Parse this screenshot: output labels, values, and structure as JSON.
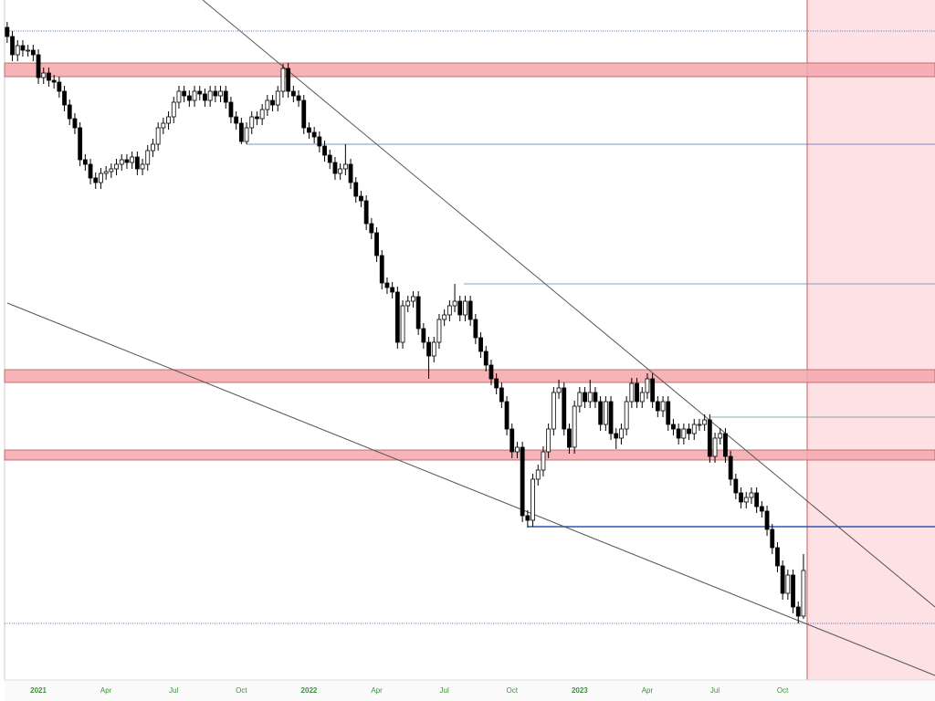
{
  "chart_data": {
    "type": "candlestick",
    "categories": [
      null,
      null,
      null,
      null,
      null,
      null,
      "2021",
      null,
      null,
      null,
      null,
      null,
      null,
      null,
      null,
      null,
      null,
      null,
      null,
      "Apr",
      null,
      null,
      null,
      null,
      null,
      null,
      null,
      null,
      null,
      null,
      null,
      null,
      "Jul",
      null,
      null,
      null,
      null,
      null,
      null,
      null,
      null,
      null,
      null,
      null,
      null,
      "Oct",
      null,
      null,
      null,
      null,
      null,
      null,
      null,
      null,
      null,
      null,
      null,
      null,
      "2022",
      null,
      null,
      null,
      null,
      null,
      null,
      null,
      null,
      null,
      null,
      null,
      null,
      "Apr",
      null,
      null,
      null,
      null,
      null,
      null,
      null,
      null,
      null,
      null,
      null,
      null,
      "Jul",
      null,
      null,
      null,
      null,
      null,
      null,
      null,
      null,
      null,
      null,
      null,
      null,
      "Oct",
      null,
      null,
      null,
      null,
      null,
      null,
      null,
      null,
      null,
      null,
      null,
      null,
      "2023",
      null,
      null,
      null,
      null,
      null,
      null,
      null,
      null,
      null,
      null,
      null,
      null,
      "Apr",
      null,
      null,
      null,
      null,
      null,
      null,
      null,
      null,
      null,
      null,
      null,
      null,
      "Jul",
      null,
      null,
      null,
      null,
      null,
      null,
      null,
      null,
      null,
      null,
      null,
      null,
      "Oct",
      null,
      null,
      null,
      null
    ],
    "values": [
      [
        73,
        73.6,
        71.3,
        72
      ],
      [
        72,
        72.6,
        69.3,
        70
      ],
      [
        70,
        71.6,
        69.3,
        71
      ],
      [
        71,
        71.6,
        69.8,
        70.5
      ],
      [
        70.5,
        71.1,
        69.8,
        70.5
      ],
      [
        70.5,
        71.1,
        69.3,
        70
      ],
      [
        70,
        70.6,
        66.8,
        67.5
      ],
      [
        67.5,
        68.6,
        66.8,
        68
      ],
      [
        68,
        68.6,
        66.5,
        67.2
      ],
      [
        67.2,
        67.8,
        66.3,
        67
      ],
      [
        67,
        67.6,
        65.3,
        66
      ],
      [
        66,
        66.6,
        63.8,
        64.5
      ],
      [
        64.5,
        65.1,
        62.3,
        63
      ],
      [
        63,
        63.6,
        61.3,
        62
      ],
      [
        62,
        62.6,
        57.8,
        58.5
      ],
      [
        58.5,
        59.1,
        57.3,
        58
      ],
      [
        58,
        58.6,
        55.8,
        56.5
      ],
      [
        56.5,
        57.1,
        55.3,
        56
      ],
      [
        56,
        57.6,
        55.3,
        57
      ],
      [
        57,
        57.8,
        56.3,
        57.2
      ],
      [
        57.2,
        58.1,
        56.5,
        57.5
      ],
      [
        57.5,
        58.6,
        56.8,
        58
      ],
      [
        58,
        59.1,
        57.3,
        58.5
      ],
      [
        58.5,
        59.1,
        57.5,
        58.2
      ],
      [
        58.2,
        59.4,
        57.5,
        58.8
      ],
      [
        58.8,
        59.4,
        56.8,
        57.5
      ],
      [
        57.5,
        58.6,
        56.8,
        58
      ],
      [
        58,
        60.1,
        57.3,
        59.5
      ],
      [
        59.5,
        60.8,
        58.8,
        60.2
      ],
      [
        60.2,
        62.6,
        59.5,
        62
      ],
      [
        62,
        63.1,
        61.3,
        62.5
      ],
      [
        62.5,
        63.8,
        61.8,
        63.2
      ],
      [
        63.2,
        65.4,
        62.5,
        64.8
      ],
      [
        64.8,
        66.6,
        64.1,
        66
      ],
      [
        66,
        66.6,
        64.8,
        65.5
      ],
      [
        65.5,
        66.1,
        64.3,
        65
      ],
      [
        65,
        66.6,
        64.3,
        66
      ],
      [
        66,
        66.6,
        65,
        65.7
      ],
      [
        65.7,
        66.3,
        64.3,
        65
      ],
      [
        65,
        66.6,
        64.3,
        66
      ],
      [
        66,
        66.6,
        64.8,
        65.5
      ],
      [
        65.5,
        66.6,
        64.8,
        66
      ],
      [
        66,
        66.6,
        64.1,
        64.8
      ],
      [
        64.8,
        65.4,
        62.5,
        63.2
      ],
      [
        63.2,
        63.8,
        61.8,
        62.5
      ],
      [
        62.5,
        63.1,
        60.2,
        60.5
      ],
      [
        60.5,
        62.6,
        60.2,
        62
      ],
      [
        62,
        63.8,
        61.3,
        63.2
      ],
      [
        63.2,
        63.8,
        62.3,
        63
      ],
      [
        63,
        64.6,
        62.3,
        64
      ],
      [
        64,
        65.6,
        63.3,
        65
      ],
      [
        65,
        65.6,
        63.8,
        64.5
      ],
      [
        64.5,
        66.6,
        63.8,
        66
      ],
      [
        66,
        69,
        65.3,
        68.5
      ],
      [
        68.5,
        69.1,
        65.3,
        66
      ],
      [
        66,
        66.6,
        64.8,
        65.5
      ],
      [
        65.5,
        66.1,
        64.3,
        65
      ],
      [
        65,
        65.6,
        61.3,
        62
      ],
      [
        62,
        62.6,
        60.8,
        61.5
      ],
      [
        61.5,
        62.1,
        60.3,
        61
      ],
      [
        61,
        61.6,
        59.3,
        60
      ],
      [
        60,
        60.6,
        58.3,
        59
      ],
      [
        59,
        59.6,
        57.5,
        58.2
      ],
      [
        58.2,
        58.8,
        56.3,
        57
      ],
      [
        57,
        58.1,
        56.3,
        57.5
      ],
      [
        57.5,
        60.2,
        56.8,
        58
      ],
      [
        58,
        58.6,
        55.3,
        56
      ],
      [
        56,
        56.6,
        53.8,
        54.5
      ],
      [
        54.5,
        55.1,
        53.3,
        54
      ],
      [
        54,
        54.6,
        50.8,
        51.5
      ],
      [
        51.5,
        52.1,
        49.8,
        50.5
      ],
      [
        50.5,
        51.1,
        47.3,
        48
      ],
      [
        48,
        48.6,
        44.3,
        45
      ],
      [
        45,
        45.6,
        43.8,
        44.5
      ],
      [
        44.5,
        45.1,
        43.3,
        44
      ],
      [
        44,
        44.6,
        37.8,
        38.5
      ],
      [
        38.5,
        43.1,
        37.8,
        42.5
      ],
      [
        42.5,
        43.6,
        41.8,
        43
      ],
      [
        43,
        44.1,
        42.3,
        43.5
      ],
      [
        43.5,
        44.1,
        39.3,
        40
      ],
      [
        40,
        40.6,
        37.8,
        38.5
      ],
      [
        38.5,
        39.1,
        34.5,
        37
      ],
      [
        37,
        39.1,
        36.3,
        38.5
      ],
      [
        38.5,
        41.6,
        37.8,
        41
      ],
      [
        41,
        42.1,
        40.3,
        41.5
      ],
      [
        41.5,
        43.1,
        40.8,
        42.5
      ],
      [
        42.5,
        44.9,
        41.8,
        43
      ],
      [
        43,
        43.6,
        40.8,
        41.5
      ],
      [
        41.5,
        43.6,
        40.8,
        43
      ],
      [
        43,
        43.6,
        40.3,
        41
      ],
      [
        41,
        41.6,
        38.3,
        39
      ],
      [
        39,
        39.6,
        36.8,
        37.5
      ],
      [
        37.5,
        38.1,
        35.3,
        36
      ],
      [
        36,
        36.6,
        33.8,
        34.5
      ],
      [
        34.5,
        35.1,
        32.8,
        33.5
      ],
      [
        33.5,
        34.1,
        31.3,
        32
      ],
      [
        32,
        32.6,
        28.3,
        29
      ],
      [
        29,
        29.6,
        25.8,
        26.5
      ],
      [
        26.5,
        27.6,
        25.8,
        27
      ],
      [
        27,
        27.6,
        18.8,
        19.5
      ],
      [
        19.5,
        20.1,
        18.2,
        19
      ],
      [
        19,
        24.1,
        18.3,
        23.5
      ],
      [
        23.5,
        25.1,
        22.8,
        24.5
      ],
      [
        24.5,
        27.1,
        23.8,
        26.5
      ],
      [
        26.5,
        29.6,
        25.8,
        29
      ],
      [
        29,
        33.6,
        28.3,
        33
      ],
      [
        33,
        34.4,
        32.3,
        33.5
      ],
      [
        33.5,
        34.1,
        28.3,
        29
      ],
      [
        29,
        29.6,
        26.3,
        27
      ],
      [
        27,
        32.1,
        26.3,
        31.5
      ],
      [
        31.5,
        33.6,
        30.8,
        33
      ],
      [
        33,
        33.6,
        31.3,
        32
      ],
      [
        32,
        34.4,
        31.3,
        33
      ],
      [
        33,
        33.6,
        31.3,
        32
      ],
      [
        32,
        32.6,
        28.8,
        29.5
      ],
      [
        29.5,
        32.6,
        28.8,
        32
      ],
      [
        32,
        32.6,
        27.8,
        28.5
      ],
      [
        28.5,
        29.1,
        26.8,
        28
      ],
      [
        28,
        29.6,
        27.3,
        29
      ],
      [
        29,
        32.6,
        28.3,
        32
      ],
      [
        32,
        34.6,
        31.3,
        34
      ],
      [
        34,
        34.6,
        31.3,
        32
      ],
      [
        32,
        33.6,
        31.3,
        33
      ],
      [
        33,
        35.1,
        32.3,
        34.5
      ],
      [
        34.5,
        35.1,
        31.3,
        32
      ],
      [
        32,
        32.6,
        30.3,
        31
      ],
      [
        31,
        32.6,
        30.3,
        32
      ],
      [
        32,
        32.6,
        28.8,
        29.5
      ],
      [
        29.5,
        30.1,
        28.3,
        29
      ],
      [
        29,
        29.6,
        27.3,
        28
      ],
      [
        28,
        29.6,
        27.3,
        29
      ],
      [
        29,
        29.6,
        27.8,
        28.5
      ],
      [
        28.5,
        30.1,
        27.8,
        29.5
      ],
      [
        29.5,
        30.1,
        28.8,
        29.5
      ],
      [
        29.5,
        30.6,
        28.8,
        30
      ],
      [
        30,
        30.6,
        25.3,
        26
      ],
      [
        26,
        28.6,
        25.3,
        28
      ],
      [
        28,
        29.1,
        27.3,
        28.5
      ],
      [
        28.5,
        29.1,
        25.3,
        26
      ],
      [
        26,
        26.6,
        22.8,
        23.5
      ],
      [
        23.5,
        24.1,
        21.3,
        22
      ],
      [
        22,
        22.6,
        20.3,
        21
      ],
      [
        21,
        22.1,
        20.3,
        21.5
      ],
      [
        21.5,
        22.6,
        20.8,
        22
      ],
      [
        22,
        22.6,
        19.8,
        20.5
      ],
      [
        20.5,
        21.1,
        19.3,
        20
      ],
      [
        20,
        20.6,
        17.3,
        18
      ],
      [
        18,
        18.6,
        15.3,
        16
      ],
      [
        16,
        16.6,
        13.3,
        14
      ],
      [
        14,
        14.6,
        10.3,
        11
      ],
      [
        11,
        13.6,
        10.3,
        13
      ],
      [
        13,
        13.6,
        8.8,
        9.5
      ],
      [
        9.5,
        10.1,
        7.7,
        8.5
      ],
      [
        8.5,
        15.3,
        8.2,
        13.5
      ]
    ],
    "ylim": [
      1.5,
      76
    ],
    "color_up": "#ffffff",
    "color_down": "#000000",
    "tick_color": "#3f8f3f"
  }
}
